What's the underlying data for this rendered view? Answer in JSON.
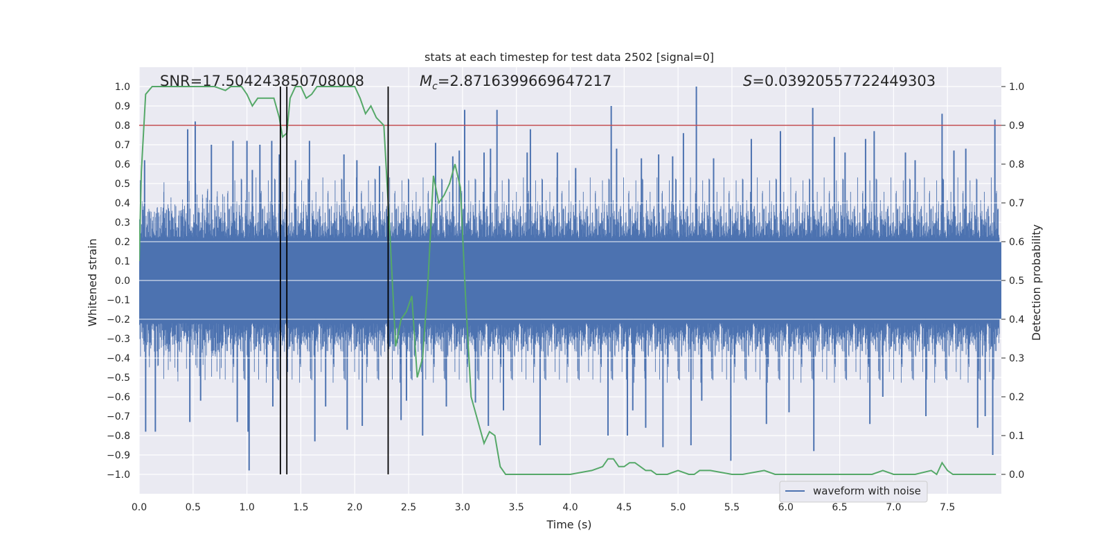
{
  "chart_data": {
    "type": "line",
    "title": "stats at each timestep for test data 2502 [signal=0]",
    "xlabel": "Time (s)",
    "ylabel_left": "Whitened strain",
    "ylabel_right": "Detection probability",
    "xlim": [
      0.0,
      8.0
    ],
    "ylim_left": [
      -1.1,
      1.1
    ],
    "ylim_right": [
      -0.05,
      1.05
    ],
    "x_ticks": [
      0.0,
      0.5,
      1.0,
      1.5,
      2.0,
      2.5,
      3.0,
      3.5,
      4.0,
      4.5,
      5.0,
      5.5,
      6.0,
      6.5,
      7.0,
      7.5
    ],
    "x_tick_labels": [
      "0.0",
      "0.5",
      "1.0",
      "1.5",
      "2.0",
      "2.5",
      "3.0",
      "3.5",
      "4.0",
      "4.5",
      "5.0",
      "5.5",
      "6.0",
      "6.5",
      "7.0",
      "7.5"
    ],
    "y_left_ticks": [
      1.0,
      0.9,
      0.8,
      0.7,
      0.6,
      0.5,
      0.4,
      0.3,
      0.2,
      0.1,
      0.0,
      -0.1,
      -0.2,
      -0.3,
      -0.4,
      -0.5,
      -0.6,
      -0.7,
      -0.8,
      -0.9,
      -1.0
    ],
    "y_left_tick_labels": [
      "1.0",
      "0.9",
      "0.8",
      "0.7",
      "0.6",
      "0.5",
      "0.4",
      "0.3",
      "0.2",
      "0.1",
      "0.0",
      "−0.1",
      "−0.2",
      "−0.3",
      "−0.4",
      "−0.5",
      "−0.6",
      "−0.7",
      "−0.8",
      "−0.9",
      "−1.0"
    ],
    "y_right_ticks": [
      1.0,
      0.9,
      0.8,
      0.7,
      0.6,
      0.5,
      0.4,
      0.3,
      0.2,
      0.1,
      0.0
    ],
    "y_right_tick_labels": [
      "1.0",
      "0.9",
      "0.8",
      "0.7",
      "0.6",
      "0.5",
      "0.4",
      "0.3",
      "0.2",
      "0.1",
      "0.0"
    ],
    "annotations": {
      "snr": "SNR=17.504243850708008",
      "mc_symbol": "M",
      "mc_subscript": "c",
      "mc_value": "=2.8716399669647217",
      "s_symbol": "S",
      "s_value": "=0.03920557722449303"
    },
    "threshold": {
      "value": 0.9,
      "axis": "right",
      "color": "#c44e52"
    },
    "vertical_markers_s": [
      1.31,
      1.37,
      2.31
    ],
    "vertical_marker_ymin": -1.0,
    "vertical_marker_ymax": 1.0,
    "waveform": {
      "name": "waveform with noise",
      "color": "#4c72b0",
      "typical_envelope": 0.4,
      "spikes": [
        [
          0.05,
          0.62
        ],
        [
          0.06,
          -0.78
        ],
        [
          0.15,
          -0.78
        ],
        [
          0.45,
          0.78
        ],
        [
          0.47,
          -0.73
        ],
        [
          0.52,
          0.82
        ],
        [
          0.57,
          -0.62
        ],
        [
          0.67,
          0.7
        ],
        [
          0.87,
          0.72
        ],
        [
          0.91,
          -0.73
        ],
        [
          1.0,
          0.72
        ],
        [
          1.01,
          -0.78
        ],
        [
          1.02,
          -0.98
        ],
        [
          1.05,
          0.57
        ],
        [
          1.12,
          0.7
        ],
        [
          1.23,
          0.72
        ],
        [
          1.24,
          -0.65
        ],
        [
          1.3,
          0.65
        ],
        [
          1.45,
          0.62
        ],
        [
          1.58,
          0.72
        ],
        [
          1.63,
          -0.83
        ],
        [
          1.73,
          -0.65
        ],
        [
          1.9,
          0.65
        ],
        [
          1.93,
          -0.77
        ],
        [
          2.02,
          0.62
        ],
        [
          2.07,
          -0.75
        ],
        [
          2.23,
          0.59
        ],
        [
          2.43,
          -0.72
        ],
        [
          2.48,
          -0.62
        ],
        [
          2.63,
          -0.8
        ],
        [
          2.75,
          0.71
        ],
        [
          2.85,
          -0.65
        ],
        [
          2.91,
          0.64
        ],
        [
          2.97,
          0.67
        ],
        [
          3.02,
          0.88
        ],
        [
          3.12,
          -0.63
        ],
        [
          3.2,
          0.66
        ],
        [
          3.24,
          -0.75
        ],
        [
          3.26,
          0.68
        ],
        [
          3.32,
          0.88
        ],
        [
          3.38,
          -0.67
        ],
        [
          3.6,
          0.66
        ],
        [
          3.63,
          0.78
        ],
        [
          3.72,
          -0.85
        ],
        [
          3.88,
          0.66
        ],
        [
          4.05,
          0.58
        ],
        [
          4.35,
          -0.8
        ],
        [
          4.38,
          0.9
        ],
        [
          4.43,
          0.68
        ],
        [
          4.53,
          -0.8
        ],
        [
          4.58,
          -0.67
        ],
        [
          4.66,
          0.63
        ],
        [
          4.7,
          -0.76
        ],
        [
          4.82,
          0.65
        ],
        [
          4.86,
          -0.86
        ],
        [
          4.95,
          0.64
        ],
        [
          5.05,
          0.76
        ],
        [
          5.12,
          -0.85
        ],
        [
          5.17,
          1.0
        ],
        [
          5.22,
          -0.62
        ],
        [
          5.33,
          0.63
        ],
        [
          5.49,
          -0.93
        ],
        [
          5.68,
          0.73
        ],
        [
          5.82,
          -0.74
        ],
        [
          5.95,
          0.77
        ],
        [
          6.03,
          -0.68
        ],
        [
          6.25,
          0.89
        ],
        [
          6.26,
          -0.88
        ],
        [
          6.45,
          0.74
        ],
        [
          6.55,
          0.66
        ],
        [
          6.74,
          0.73
        ],
        [
          6.78,
          -0.74
        ],
        [
          6.82,
          0.77
        ],
        [
          6.9,
          -0.6
        ],
        [
          7.11,
          0.66
        ],
        [
          7.2,
          0.62
        ],
        [
          7.3,
          -0.7
        ],
        [
          7.45,
          0.86
        ],
        [
          7.56,
          0.67
        ],
        [
          7.67,
          0.68
        ],
        [
          7.78,
          -0.76
        ],
        [
          7.85,
          -0.7
        ],
        [
          7.92,
          -0.9
        ],
        [
          7.94,
          0.83
        ]
      ]
    },
    "series": [
      {
        "name": "detection probability",
        "axis": "right",
        "color": "#55a868",
        "x": [
          0.0,
          0.02,
          0.06,
          0.12,
          0.2,
          0.3,
          0.4,
          0.5,
          0.6,
          0.7,
          0.8,
          0.85,
          0.9,
          0.95,
          1.0,
          1.05,
          1.1,
          1.15,
          1.2,
          1.25,
          1.3,
          1.33,
          1.37,
          1.4,
          1.45,
          1.5,
          1.55,
          1.6,
          1.65,
          1.7,
          1.75,
          1.8,
          1.9,
          2.0,
          2.05,
          2.1,
          2.15,
          2.2,
          2.27,
          2.33,
          2.38,
          2.43,
          2.48,
          2.53,
          2.58,
          2.63,
          2.68,
          2.73,
          2.78,
          2.83,
          2.88,
          2.93,
          2.98,
          3.03,
          3.08,
          3.13,
          3.2,
          3.25,
          3.3,
          3.35,
          3.4,
          3.45,
          3.55,
          3.65,
          3.8,
          4.0,
          4.2,
          4.3,
          4.35,
          4.4,
          4.45,
          4.5,
          4.55,
          4.6,
          4.65,
          4.7,
          4.75,
          4.8,
          4.9,
          5.0,
          5.1,
          5.15,
          5.2,
          5.3,
          5.5,
          5.6,
          5.8,
          5.9,
          6.0,
          6.2,
          6.5,
          6.8,
          6.9,
          7.0,
          7.2,
          7.35,
          7.4,
          7.45,
          7.5,
          7.55,
          7.6,
          7.7,
          7.95
        ],
        "y": [
          0.55,
          0.78,
          0.98,
          1.0,
          1.0,
          1.0,
          1.0,
          1.0,
          1.0,
          1.0,
          0.99,
          1.0,
          1.0,
          1.0,
          0.98,
          0.95,
          0.97,
          0.97,
          0.97,
          0.97,
          0.92,
          0.87,
          0.88,
          0.97,
          1.0,
          1.0,
          0.97,
          0.98,
          1.0,
          1.0,
          1.0,
          1.0,
          1.0,
          1.0,
          0.97,
          0.93,
          0.95,
          0.92,
          0.9,
          0.6,
          0.33,
          0.4,
          0.42,
          0.46,
          0.25,
          0.3,
          0.5,
          0.77,
          0.7,
          0.72,
          0.75,
          0.8,
          0.74,
          0.45,
          0.2,
          0.15,
          0.08,
          0.11,
          0.1,
          0.02,
          0.0,
          0.0,
          0.0,
          0.0,
          0.0,
          0.0,
          0.01,
          0.02,
          0.04,
          0.04,
          0.02,
          0.02,
          0.03,
          0.03,
          0.02,
          0.01,
          0.01,
          0.0,
          0.0,
          0.01,
          0.0,
          0.0,
          0.01,
          0.01,
          0.0,
          0.0,
          0.01,
          0.0,
          0.0,
          0.0,
          0.0,
          0.0,
          0.01,
          0.0,
          0.0,
          0.01,
          0.0,
          0.03,
          0.01,
          0.0,
          0.0,
          0.0,
          0.0
        ]
      }
    ],
    "legend": {
      "position": "lower-right",
      "entries": [
        "waveform with noise"
      ]
    }
  }
}
